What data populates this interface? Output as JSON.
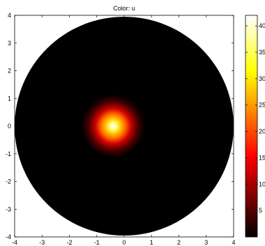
{
  "chart_data": {
    "type": "heatmap",
    "title": "Color: u",
    "xlabel": "",
    "ylabel": "",
    "xlim": [
      -4,
      4
    ],
    "ylim": [
      -4,
      4
    ],
    "x_ticks": [
      "-4",
      "-3",
      "-2",
      "-1",
      "0",
      "1",
      "2",
      "3",
      "4"
    ],
    "y_ticks": [
      "4",
      "3",
      "2",
      "1",
      "0",
      "-1",
      "-2",
      "-3",
      "-4"
    ],
    "domain": {
      "shape": "circle",
      "center": [
        0,
        0
      ],
      "radius": 4
    },
    "peak": {
      "x": -0.4,
      "y": 0,
      "value": 42,
      "spread": 0.45
    },
    "colorbar": {
      "colormap": "hot",
      "range": [
        0,
        42
      ],
      "tick_values": [
        5,
        10,
        15,
        20,
        25,
        30,
        35,
        40
      ],
      "tick_labels": [
        "5",
        "10",
        "15",
        "20",
        "25",
        "30",
        "35",
        "40"
      ]
    },
    "grid": false,
    "colors": {
      "background": "#000000",
      "peak": "#ffffff"
    }
  }
}
